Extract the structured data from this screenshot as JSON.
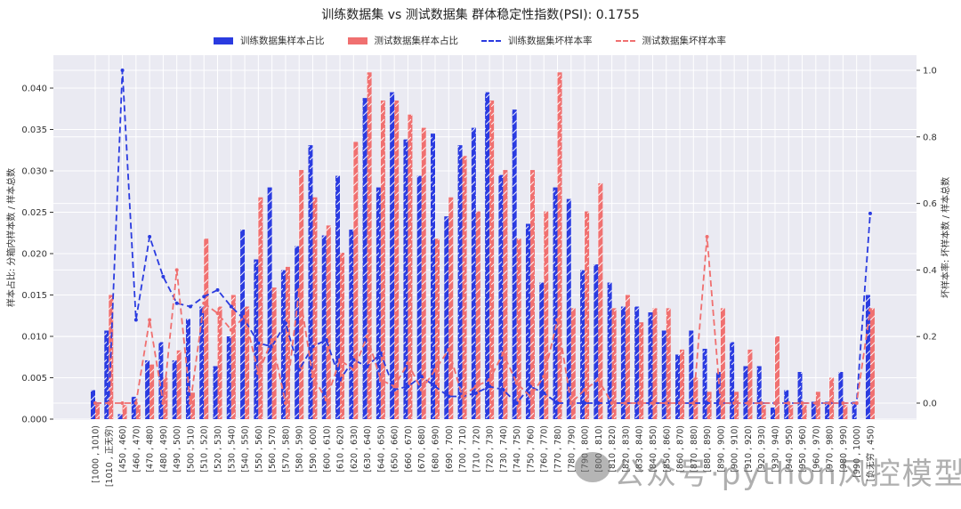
{
  "title": "训练数据集 vs 测试数据集 群体稳定性指数(PSI): 0.1755",
  "legend": [
    {
      "label": "训练数据集样本占比",
      "color": "#2a3be0",
      "kind": "bar"
    },
    {
      "label": "测试数据集样本占比",
      "color": "#f07070",
      "kind": "bar"
    },
    {
      "label": "训练数据集坏样本率",
      "color": "#2a3be0",
      "kind": "dashed-line"
    },
    {
      "label": "测试数据集坏样本率",
      "color": "#f07070",
      "kind": "dashed-line"
    }
  ],
  "watermark": "公众号·python风控模型",
  "colors": {
    "train": "#2a3be0",
    "test": "#f07070",
    "plot_bg": "#eaeaf2",
    "grid": "#ffffff"
  },
  "chart_data": {
    "type": "bar",
    "title": "训练数据集 vs 测试数据集 群体稳定性指数(PSI): 0.1755",
    "psi": 0.1755,
    "xlabel": "",
    "ylabel": "样本占比: 分箱内样本数 / 样本总数",
    "ylabel_right": "坏样本率: 坏样本数 / 样本总数",
    "ylim": [
      0,
      0.042
    ],
    "ylim_right": [
      -0.05,
      1.05
    ],
    "yticks": [
      "0.000",
      "0.005",
      "0.010",
      "0.015",
      "0.020",
      "0.025",
      "0.030",
      "0.035",
      "0.040"
    ],
    "yticks_right": [
      "0.0",
      "0.2",
      "0.4",
      "0.6",
      "0.8",
      "1.0"
    ],
    "grid": true,
    "legend_position": "top",
    "categories": [
      "[1000 , 1010)",
      "[1010 , 正无穷)",
      "[450 , 460)",
      "[460 , 470)",
      "[470 , 480)",
      "[480 , 490)",
      "[490 , 500)",
      "[500 , 510)",
      "[510 , 520)",
      "[520 , 530)",
      "[530 , 540)",
      "[540 , 550)",
      "[550 , 560)",
      "[560 , 570)",
      "[570 , 580)",
      "[580 , 590)",
      "[590 , 600)",
      "[600 , 610)",
      "[610 , 620)",
      "[620 , 630)",
      "[630 , 640)",
      "[640 , 650)",
      "[650 , 660)",
      "[660 , 670)",
      "[670 , 680)",
      "[680 , 690)",
      "[690 , 700)",
      "[700 , 710)",
      "[710 , 720)",
      "[720 , 730)",
      "[730 , 740)",
      "[740 , 750)",
      "[750 , 760)",
      "[760 , 770)",
      "[770 , 780)",
      "[780 , 790)",
      "[790 , 800)",
      "[800 , 810)",
      "[810 , 820)",
      "[820 , 830)",
      "[830 , 840)",
      "[840 , 850)",
      "[850 , 860)",
      "[860 , 870)",
      "[870 , 880)",
      "[880 , 890)",
      "[890 , 900)",
      "[900 , 910)",
      "[910 , 920)",
      "[920 , 930)",
      "[930 , 940)",
      "[940 , 950)",
      "[950 , 960)",
      "[960 , 970)",
      "[970 , 980)",
      "[980 , 990)",
      "[990 , 1000)",
      "[负无穷 , 450)"
    ],
    "series": [
      {
        "name": "训练数据集样本占比",
        "type": "bar",
        "axis": "left",
        "values": [
          0.0035,
          0.0107,
          0.0006,
          0.0027,
          0.0071,
          0.0093,
          0.0071,
          0.0121,
          0.0136,
          0.0064,
          0.01,
          0.0229,
          0.0193,
          0.028,
          0.018,
          0.0209,
          0.0331,
          0.0222,
          0.0294,
          0.0229,
          0.0388,
          0.028,
          0.0395,
          0.0338,
          0.0294,
          0.0345,
          0.0245,
          0.0331,
          0.0352,
          0.0395,
          0.0295,
          0.0374,
          0.0236,
          0.0165,
          0.028,
          0.0266,
          0.018,
          0.0187,
          0.0165,
          0.0136,
          0.0136,
          0.0129,
          0.0107,
          0.0078,
          0.0107,
          0.0085,
          0.0057,
          0.0093,
          0.0064,
          0.0064,
          0.0014,
          0.0035,
          0.0057,
          0.0021,
          0.0021,
          0.0057,
          0.0021,
          0.015
        ]
      },
      {
        "name": "测试数据集样本占比",
        "type": "bar",
        "axis": "left",
        "values": [
          0.0018,
          0.015,
          0.0017,
          0.0017,
          0.0066,
          0.005,
          0.0083,
          0.0032,
          0.0218,
          0.0136,
          0.015,
          0.0136,
          0.0268,
          0.0159,
          0.0184,
          0.0301,
          0.0268,
          0.0234,
          0.0201,
          0.0335,
          0.0419,
          0.0385,
          0.0385,
          0.0368,
          0.0352,
          0.0218,
          0.0268,
          0.0318,
          0.0251,
          0.0385,
          0.0301,
          0.0218,
          0.0301,
          0.0251,
          0.0419,
          0.0134,
          0.0251,
          0.0285,
          0.0134,
          0.015,
          0.0117,
          0.0134,
          0.0134,
          0.0084,
          0.005,
          0.0033,
          0.0134,
          0.0033,
          0.0084,
          0.0017,
          0.01,
          0.0017,
          0.0017,
          0.0033,
          0.005,
          0.0017,
          0.0,
          0.0134
        ]
      },
      {
        "name": "训练数据集坏样本率",
        "type": "line",
        "axis": "right",
        "values": [
          0.0,
          0.0,
          1.0,
          0.25,
          0.5,
          0.38,
          0.3,
          0.29,
          0.32,
          0.34,
          0.29,
          0.25,
          0.18,
          0.17,
          0.24,
          0.1,
          0.17,
          0.19,
          0.07,
          0.13,
          0.11,
          0.15,
          0.04,
          0.05,
          0.08,
          0.05,
          0.02,
          0.02,
          0.03,
          0.05,
          0.04,
          0.0,
          0.05,
          0.03,
          0.0,
          0.0,
          0.0,
          0.0,
          0.0,
          0.0,
          0.0,
          0.0,
          0.0,
          0.0,
          0.0,
          0.0,
          0.0,
          0.0,
          0.0,
          0.0,
          0.0,
          0.0,
          0.0,
          0.0,
          0.0,
          0.0,
          0.0,
          0.57
        ]
      },
      {
        "name": "测试数据集坏样本率",
        "type": "line",
        "axis": "right",
        "values": [
          0.0,
          0.0,
          0.0,
          0.0,
          0.25,
          0.0,
          0.4,
          0.0,
          0.3,
          0.27,
          0.22,
          0.26,
          0.09,
          0.19,
          0.0,
          0.34,
          0.08,
          0.01,
          0.13,
          0.1,
          0.2,
          0.07,
          0.05,
          0.12,
          0.04,
          0.1,
          0.16,
          0.02,
          0.05,
          0.07,
          0.15,
          0.06,
          0.02,
          0.08,
          0.25,
          0.0,
          0.04,
          0.07,
          0.0,
          0.0,
          0.0,
          0.0,
          0.0,
          0.0,
          0.0,
          0.5,
          0.0,
          0.0,
          0.0,
          0.0,
          0.0,
          0.0,
          0.0,
          0.0,
          0.0,
          0.0,
          0.0,
          0.28
        ]
      }
    ]
  }
}
